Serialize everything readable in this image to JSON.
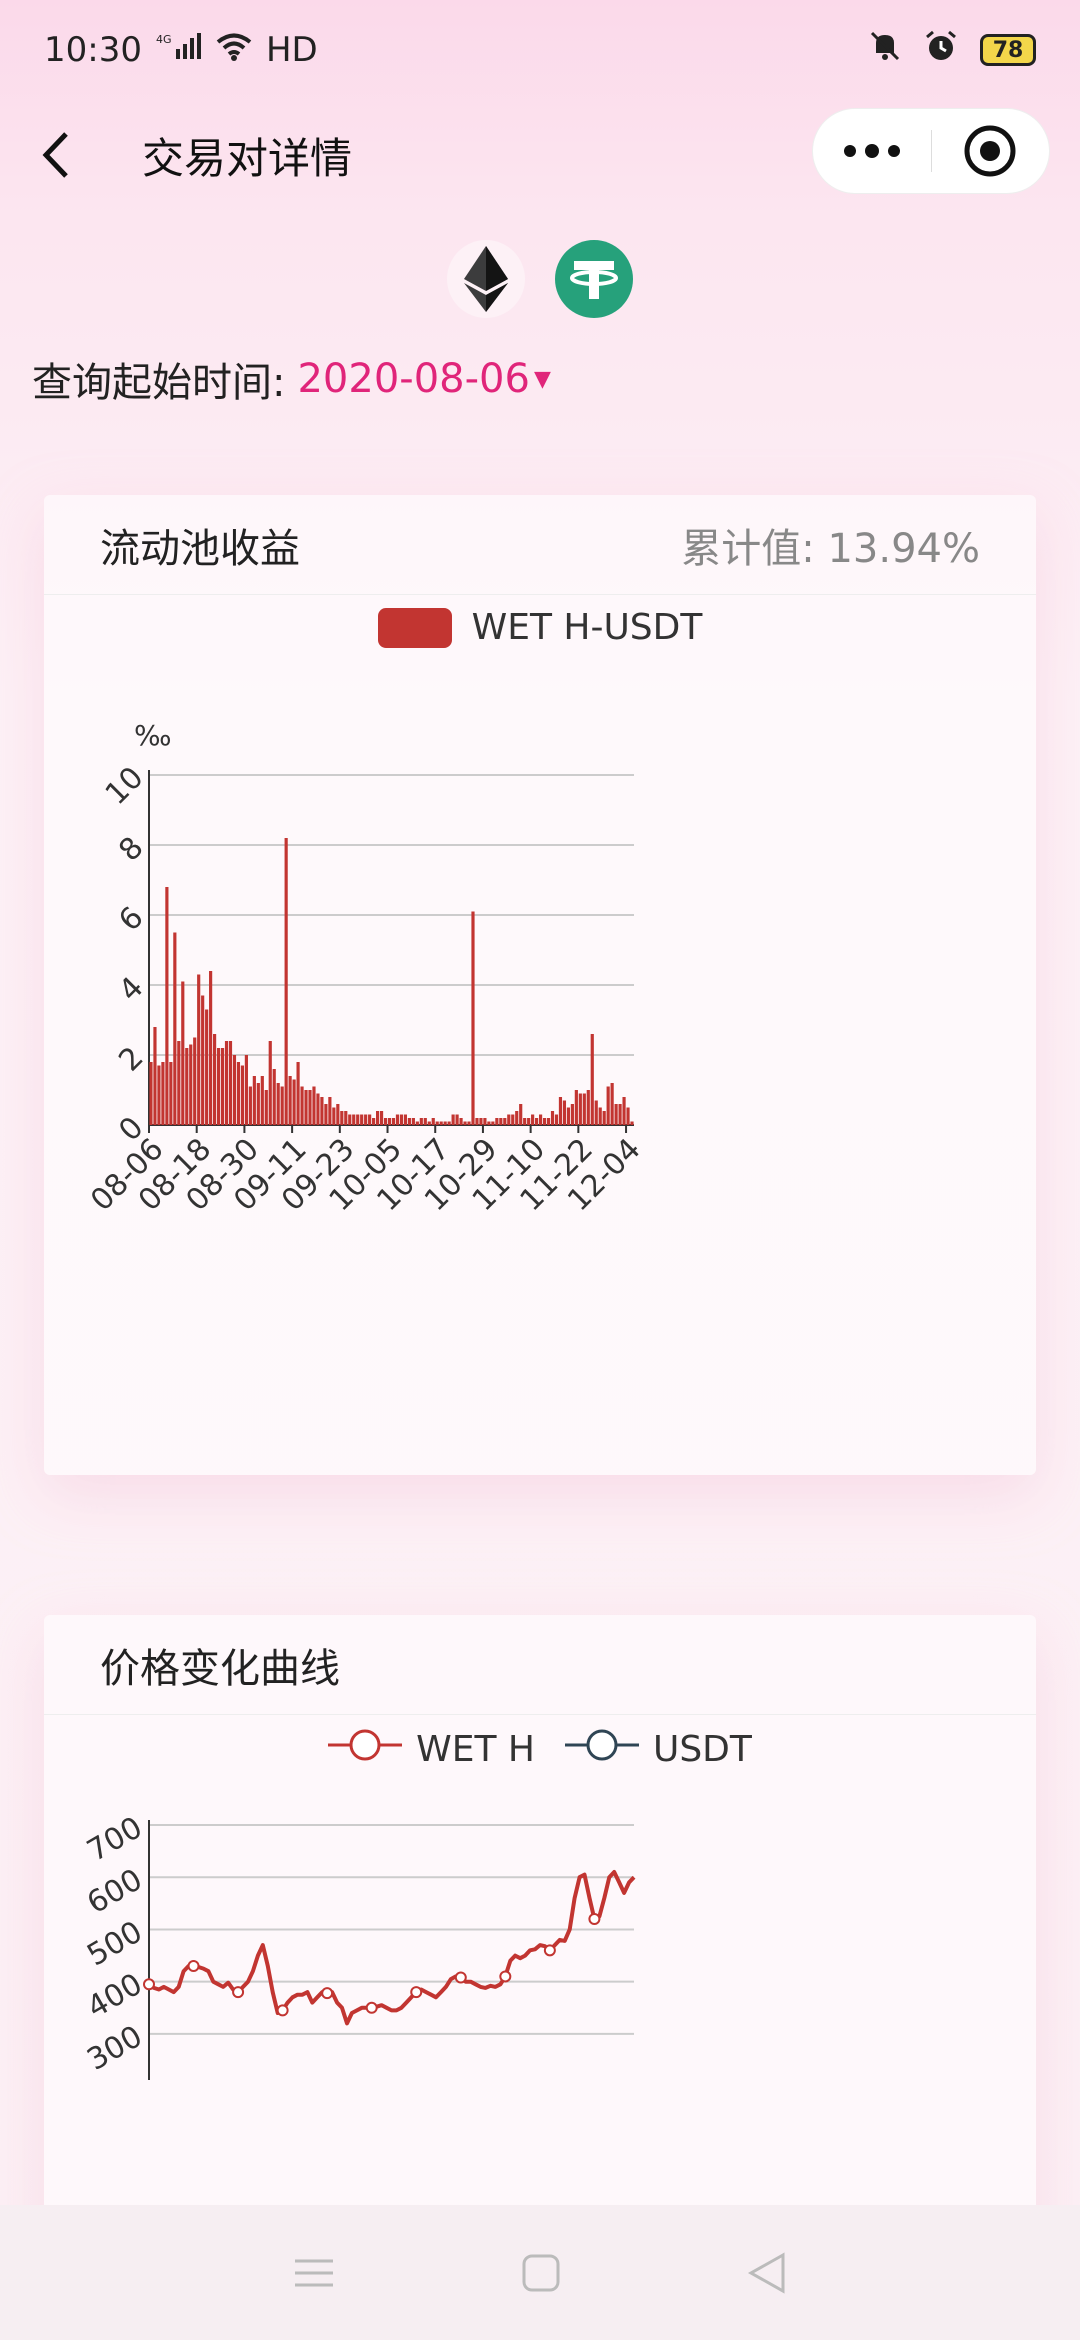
{
  "status": {
    "time": "10:30",
    "network": "4G",
    "hd": "HD",
    "battery": "78"
  },
  "nav": {
    "title": "交易对详情"
  },
  "query": {
    "label": "查询起始时间:",
    "value": "2020-08-06"
  },
  "income_card": {
    "title": "流动池收益",
    "cumulative": "累计值: 13.94%"
  },
  "price_card": {
    "title": "价格变化曲线"
  },
  "colors": {
    "accent": "#e0257a",
    "series_red": "#c23531",
    "series_dark": "#2f4554"
  },
  "chart_data": [
    {
      "type": "bar",
      "legend": [
        "WET H-USDT"
      ],
      "ylabel": "‰",
      "ylim": [
        0,
        10
      ],
      "yticks": [
        "0",
        "2",
        "4",
        "6",
        "8",
        "10"
      ],
      "xticks": [
        "08-06",
        "08-18",
        "08-30",
        "09-11",
        "09-23",
        "10-05",
        "10-17",
        "10-29",
        "11-10",
        "11-22",
        "12-04"
      ],
      "series": [
        {
          "name": "WET H-USDT",
          "values": [
            1.8,
            2.8,
            1.7,
            1.8,
            6.8,
            1.8,
            5.5,
            2.4,
            4.1,
            2.2,
            2.3,
            2.5,
            4.3,
            3.7,
            3.3,
            4.4,
            2.6,
            2.2,
            2.2,
            2.4,
            2.4,
            2.0,
            1.8,
            1.7,
            2.0,
            1.1,
            1.4,
            1.2,
            1.4,
            1.0,
            2.4,
            1.6,
            1.2,
            1.1,
            8.2,
            1.4,
            1.3,
            1.8,
            1.1,
            1.0,
            1.0,
            1.1,
            0.9,
            0.8,
            0.6,
            0.8,
            0.5,
            0.6,
            0.4,
            0.4,
            0.3,
            0.3,
            0.3,
            0.3,
            0.3,
            0.3,
            0.2,
            0.4,
            0.4,
            0.2,
            0.2,
            0.2,
            0.3,
            0.3,
            0.3,
            0.2,
            0.2,
            0.1,
            0.2,
            0.2,
            0.1,
            0.2,
            0.1,
            0.1,
            0.1,
            0.1,
            0.3,
            0.3,
            0.2,
            0.1,
            0.1,
            6.1,
            0.2,
            0.2,
            0.2,
            0.1,
            0.1,
            0.2,
            0.2,
            0.2,
            0.3,
            0.3,
            0.4,
            0.6,
            0.2,
            0.2,
            0.3,
            0.2,
            0.3,
            0.2,
            0.2,
            0.4,
            0.3,
            0.8,
            0.7,
            0.5,
            0.6,
            1.0,
            0.9,
            0.9,
            1.0,
            2.6,
            0.7,
            0.5,
            0.4,
            1.1,
            1.2,
            0.6,
            0.6,
            0.8,
            0.5,
            0.1
          ]
        }
      ]
    },
    {
      "type": "line",
      "legend": [
        "WET H",
        "USDT"
      ],
      "ylim": [
        250,
        700
      ],
      "yticks": [
        "300",
        "400",
        "500",
        "600",
        "700"
      ],
      "series": [
        {
          "name": "WET H",
          "values": [
            395,
            388,
            385,
            390,
            385,
            380,
            390,
            420,
            430,
            430,
            428,
            425,
            420,
            400,
            395,
            390,
            398,
            385,
            380,
            390,
            400,
            420,
            450,
            470,
            430,
            380,
            340,
            345,
            360,
            370,
            375,
            375,
            380,
            360,
            370,
            380,
            378,
            380,
            360,
            350,
            320,
            340,
            345,
            350,
            350,
            350,
            352,
            355,
            350,
            345,
            345,
            350,
            360,
            370,
            380,
            385,
            380,
            375,
            370,
            380,
            390,
            405,
            410,
            408,
            400,
            400,
            395,
            390,
            388,
            392,
            390,
            395,
            410,
            440,
            450,
            445,
            450,
            460,
            462,
            470,
            468,
            460,
            470,
            480,
            478,
            500,
            560,
            600,
            605,
            560,
            520,
            525,
            560,
            600,
            610,
            590,
            570,
            590,
            600
          ]
        },
        {
          "name": "USDT",
          "values": []
        }
      ]
    }
  ]
}
